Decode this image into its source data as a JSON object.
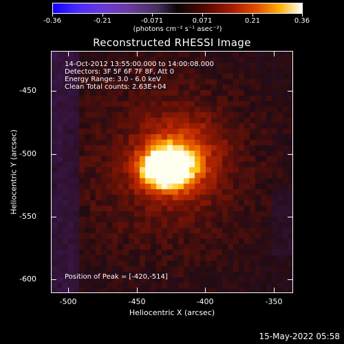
{
  "colorbar": {
    "tick_labels": [
      "-0.36",
      "-0.21",
      "-0.071",
      "0.071",
      "0.21",
      "0.36"
    ],
    "units": "(photons cm⁻² s⁻¹ asec⁻²)"
  },
  "title": "Reconstructed RHESSI Image",
  "info": {
    "time_range": "14-Oct-2012 13:55:00.000 to 14:00:08.000",
    "detectors": "Detectors: 3F 5F 6F 7F 8F, Att 0",
    "energy_range": "Energy Range: 3.0 - 6.0 keV",
    "clean_counts": "Clean     Total counts: 2.63E+04",
    "peak_position": "Position of Peak = [-420,-514]"
  },
  "axes": {
    "xlabel": "Heliocentric X (arcsec)",
    "ylabel": "Heliocentric Y (arcsec)",
    "x_ticks": [
      "-500",
      "-450",
      "-400",
      "-350"
    ],
    "y_ticks": [
      "-450",
      "-500",
      "-550",
      "-600"
    ]
  },
  "timestamp": "15-May-2022 05:58"
}
